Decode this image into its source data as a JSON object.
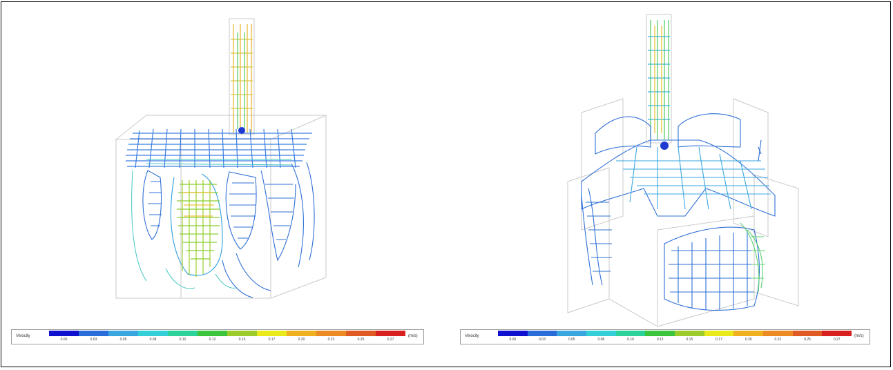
{
  "legend": {
    "label": "Velocity",
    "unit": "(m/s)",
    "ticks": [
      "0.00",
      "0.03",
      "0.05",
      "0.08",
      "0.10",
      "0.12",
      "0.15",
      "0.17",
      "0.20",
      "0.22",
      "0.25",
      "0.27"
    ],
    "colors": [
      "#1010d0",
      "#2a6cd8",
      "#3aa6e0",
      "#33cfd8",
      "#2bd39a",
      "#3cc43c",
      "#9ccc2a",
      "#eaea1a",
      "#f0b020",
      "#ec8a24",
      "#e05a24",
      "#d82020"
    ]
  },
  "panels": [
    {
      "name": "left-visualization",
      "legend_index": 0
    },
    {
      "name": "right-visualization",
      "legend_index": 1
    }
  ]
}
